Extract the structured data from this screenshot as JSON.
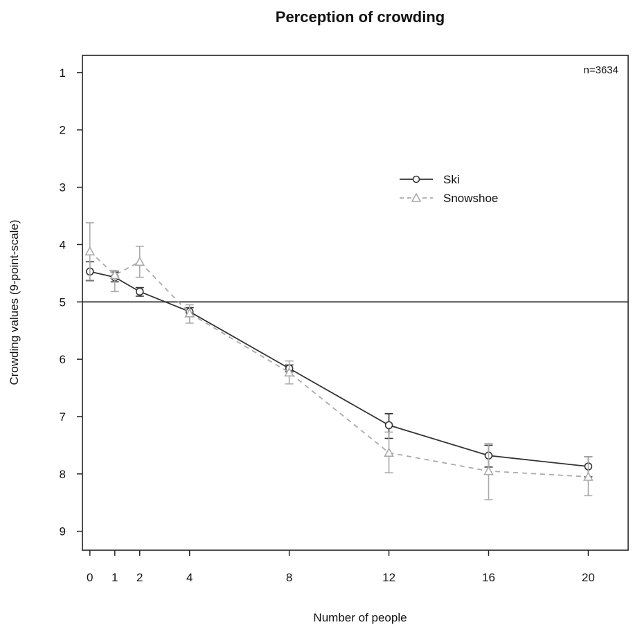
{
  "chart_data": {
    "type": "line",
    "title": "Perception of crowding",
    "xlabel": "Number of people",
    "ylabel": "Crowding values (9-point-scale)",
    "annotation": "n=3634",
    "x": [
      0,
      1,
      2,
      4,
      8,
      12,
      16,
      20
    ],
    "x_ticks": [
      "0",
      "1",
      "2",
      "4",
      "8",
      "12",
      "16",
      "20"
    ],
    "y_ticks": [
      "1",
      "2",
      "3",
      "4",
      "5",
      "6",
      "7",
      "8",
      "9"
    ],
    "xlim": [
      -0.3,
      21.6
    ],
    "ylim": [
      9.33,
      0.7
    ],
    "y_reversed": true,
    "reference_line_y": 5,
    "legend_position": "upper-right-center",
    "grid": false,
    "series": [
      {
        "name": "Ski",
        "marker": "circle",
        "line_style": "solid",
        "color": "#333333",
        "values": [
          4.47,
          4.57,
          4.82,
          5.17,
          6.16,
          7.15,
          7.68,
          7.87
        ],
        "err_low": [
          4.3,
          4.48,
          4.75,
          5.1,
          6.1,
          6.95,
          7.5,
          7.7
        ],
        "err_high": [
          4.63,
          4.65,
          4.9,
          5.25,
          6.22,
          7.38,
          7.88,
          8.05
        ]
      },
      {
        "name": "Snowshoe",
        "marker": "triangle",
        "line_style": "dashed",
        "color": "#aaaaaa",
        "values": [
          4.12,
          4.53,
          4.3,
          5.2,
          6.23,
          7.63,
          7.95,
          8.05
        ],
        "err_low": [
          3.62,
          4.45,
          4.03,
          5.05,
          6.03,
          7.27,
          7.47,
          7.7
        ],
        "err_high": [
          4.62,
          4.82,
          4.57,
          5.37,
          6.43,
          7.98,
          8.45,
          8.38
        ]
      }
    ]
  }
}
